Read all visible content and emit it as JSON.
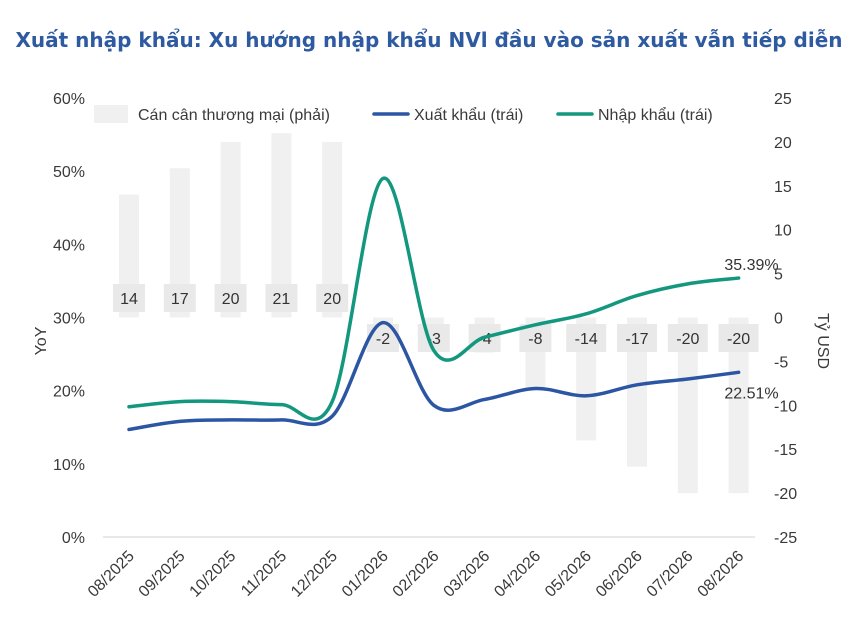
{
  "chart_data": {
    "type": "bar+line",
    "title": "Xuất nhập khẩu: Xu hướng nhập khẩu NVl đầu vào sản xuất vẫn tiếp diễn",
    "categories": [
      "08/2025",
      "09/2025",
      "10/2025",
      "11/2025",
      "12/2025",
      "01/2026",
      "02/2026",
      "03/2026",
      "04/2026",
      "05/2026",
      "06/2026",
      "07/2026",
      "08/2026"
    ],
    "y_left": {
      "label": "YoY",
      "range": [
        0,
        60
      ],
      "ticks": [
        "0%",
        "10%",
        "20%",
        "30%",
        "40%",
        "50%",
        "60%"
      ]
    },
    "y_right": {
      "label": "Tỷ USD",
      "range": [
        -25,
        25
      ],
      "ticks": [
        "-25",
        "-20",
        "-15",
        "-10",
        "-5",
        "0",
        "5",
        "10",
        "15",
        "20",
        "25"
      ]
    },
    "legend": {
      "position": "top",
      "items": [
        {
          "name": "Cán cân thương mại (phải)",
          "color": "#f0f0f0"
        },
        {
          "name": "Xuất khẩu (trái)",
          "color": "#2c56a3"
        },
        {
          "name": "Nhập khẩu (trái)",
          "color": "#13977e"
        }
      ]
    },
    "bars": {
      "name": "Cán cân thương mại (phải)",
      "axis": "right",
      "color": "#f0f0f0",
      "values": [
        14,
        17,
        20,
        21,
        20,
        -2,
        -3,
        -4,
        -8,
        -14,
        -17,
        -20,
        -20
      ],
      "labels": [
        "14",
        "17",
        "20",
        "21",
        "20",
        "-2",
        "-3",
        "-4",
        "-8",
        "-14",
        "-17",
        "-20",
        "-20"
      ]
    },
    "series": [
      {
        "name": "Xuất khẩu (trái)",
        "axis": "left",
        "color": "#2c56a3",
        "values": [
          14.7,
          15.8,
          16.0,
          16.0,
          16.5,
          29.3,
          18.0,
          18.8,
          20.3,
          19.3,
          20.8,
          21.6,
          22.51
        ],
        "end_label": "22.51%"
      },
      {
        "name": "Nhập khẩu (trái)",
        "axis": "left",
        "color": "#13977e",
        "values": [
          17.8,
          18.5,
          18.5,
          18.1,
          18.5,
          49.0,
          25.5,
          27.3,
          29.0,
          30.5,
          33.0,
          34.6,
          35.39
        ],
        "end_label": "35.39%"
      }
    ]
  }
}
